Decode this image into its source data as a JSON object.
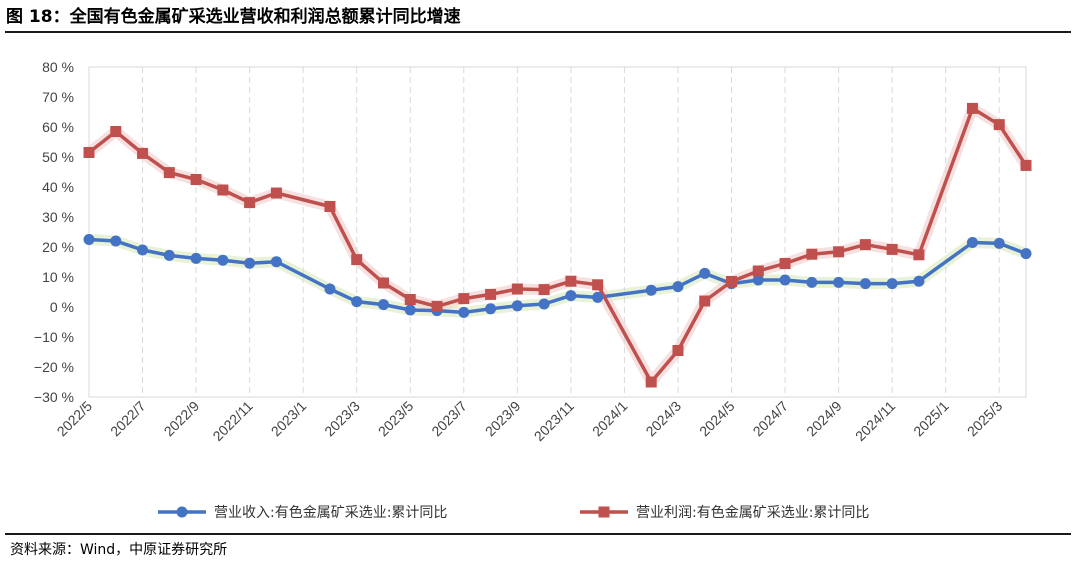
{
  "header": {
    "title": "图 18：全国有色金属矿采选业营收和利润总额累计同比增速"
  },
  "footer": {
    "source": "资料来源：Wind，中原证券研究所"
  },
  "chart_data": {
    "type": "line",
    "x": [
      "2022/5",
      "2022/6",
      "2022/7",
      "2022/8",
      "2022/9",
      "2022/10",
      "2022/11",
      "2022/12",
      "2023/2",
      "2023/3",
      "2023/4",
      "2023/5",
      "2023/6",
      "2023/7",
      "2023/8",
      "2023/9",
      "2023/10",
      "2023/11",
      "2023/12",
      "2024/2",
      "2024/3",
      "2024/4",
      "2024/5",
      "2024/6",
      "2024/7",
      "2024/8",
      "2024/9",
      "2024/10",
      "2024/11",
      "2024/12",
      "2025/2",
      "2025/3",
      "2025/4"
    ],
    "x_tick_labels": [
      "2022/5",
      "2022/7",
      "2022/9",
      "2022/11",
      "2023/1",
      "2023/3",
      "2023/5",
      "2023/7",
      "2023/9",
      "2023/11",
      "2024/1",
      "2024/3",
      "2024/5",
      "2024/7",
      "2024/9",
      "2024/11",
      "2025/1",
      "2025/3"
    ],
    "y_tick_labels": [
      "80 %",
      "70 %",
      "60 %",
      "50 %",
      "40 %",
      "30 %",
      "20 %",
      "10 %",
      "0 %",
      "−10 %",
      "−20 %",
      "−30 %"
    ],
    "ylim": [
      -30,
      80
    ],
    "grid": "vertical dashed",
    "legend_position": "bottom",
    "series": [
      {
        "name": "营业收入:有色金属矿采选业:累计同比",
        "color": "#4472C4",
        "marker": "circle",
        "values": [
          22.5,
          22,
          19,
          17.2,
          16.2,
          15.6,
          14.6,
          15.1,
          6,
          1.8,
          0.8,
          -1,
          -1.2,
          -1.8,
          -0.6,
          0.4,
          1,
          3.8,
          3.2,
          5.6,
          6.8,
          11.2,
          7.8,
          9,
          9,
          8.2,
          8.2,
          7.8,
          7.8,
          8.6,
          21.5,
          21.2,
          17.8
        ]
      },
      {
        "name": "营业利润:有色金属矿采选业:累计同比",
        "color": "#C0504D",
        "marker": "square",
        "values": [
          51.5,
          58.5,
          51.2,
          44.8,
          42.5,
          39,
          34.8,
          38,
          33.5,
          15.8,
          8,
          2.5,
          0.2,
          2.8,
          4.2,
          6,
          5.8,
          8.6,
          7.4,
          -25,
          -14.5,
          2,
          8.5,
          12,
          14.5,
          17.6,
          18.4,
          20.8,
          19.2,
          17.4,
          66.2,
          60.8,
          47.2
        ]
      }
    ]
  }
}
